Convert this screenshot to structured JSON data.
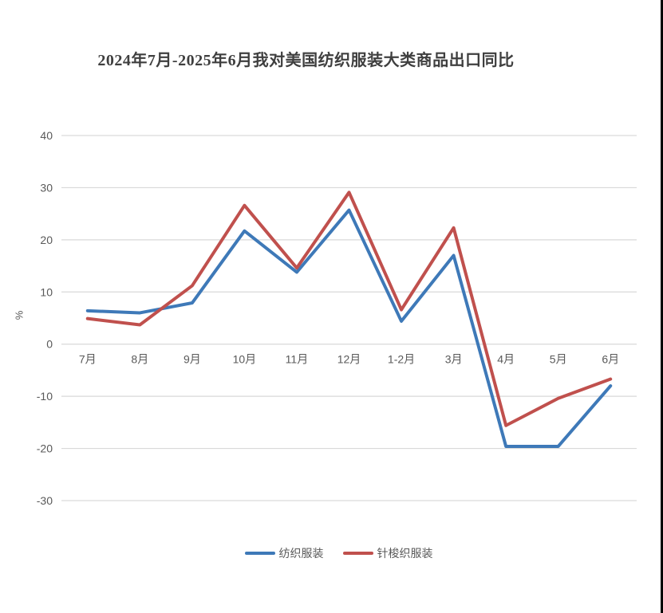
{
  "chart_data": {
    "type": "line",
    "title": "2024年7月-2025年6月我对美国纺织服装大类商品出口同比",
    "ylabel": "%",
    "xlabel": "",
    "categories": [
      "7月",
      "8月",
      "9月",
      "10月",
      "11月",
      "12月",
      "1-2月",
      "3月",
      "4月",
      "5月",
      "6月"
    ],
    "series": [
      {
        "name": "纺织服装",
        "color": "#3E79B8",
        "values": [
          6.4,
          6.0,
          7.9,
          21.7,
          13.8,
          25.7,
          4.4,
          17.0,
          -19.6,
          -19.6,
          -8.0
        ]
      },
      {
        "name": "针梭织服装",
        "color": "#C0504D",
        "values": [
          4.9,
          3.7,
          11.2,
          26.6,
          14.6,
          29.1,
          6.6,
          22.3,
          -15.6,
          -10.4,
          -6.7
        ]
      }
    ],
    "ylim": [
      -30,
      40
    ],
    "yticks": [
      40,
      30,
      20,
      10,
      0,
      -10,
      -20,
      -30
    ],
    "grid": true,
    "grid_color": "#d9d9d9",
    "text_color": "#595959",
    "legend_position": "bottom"
  }
}
